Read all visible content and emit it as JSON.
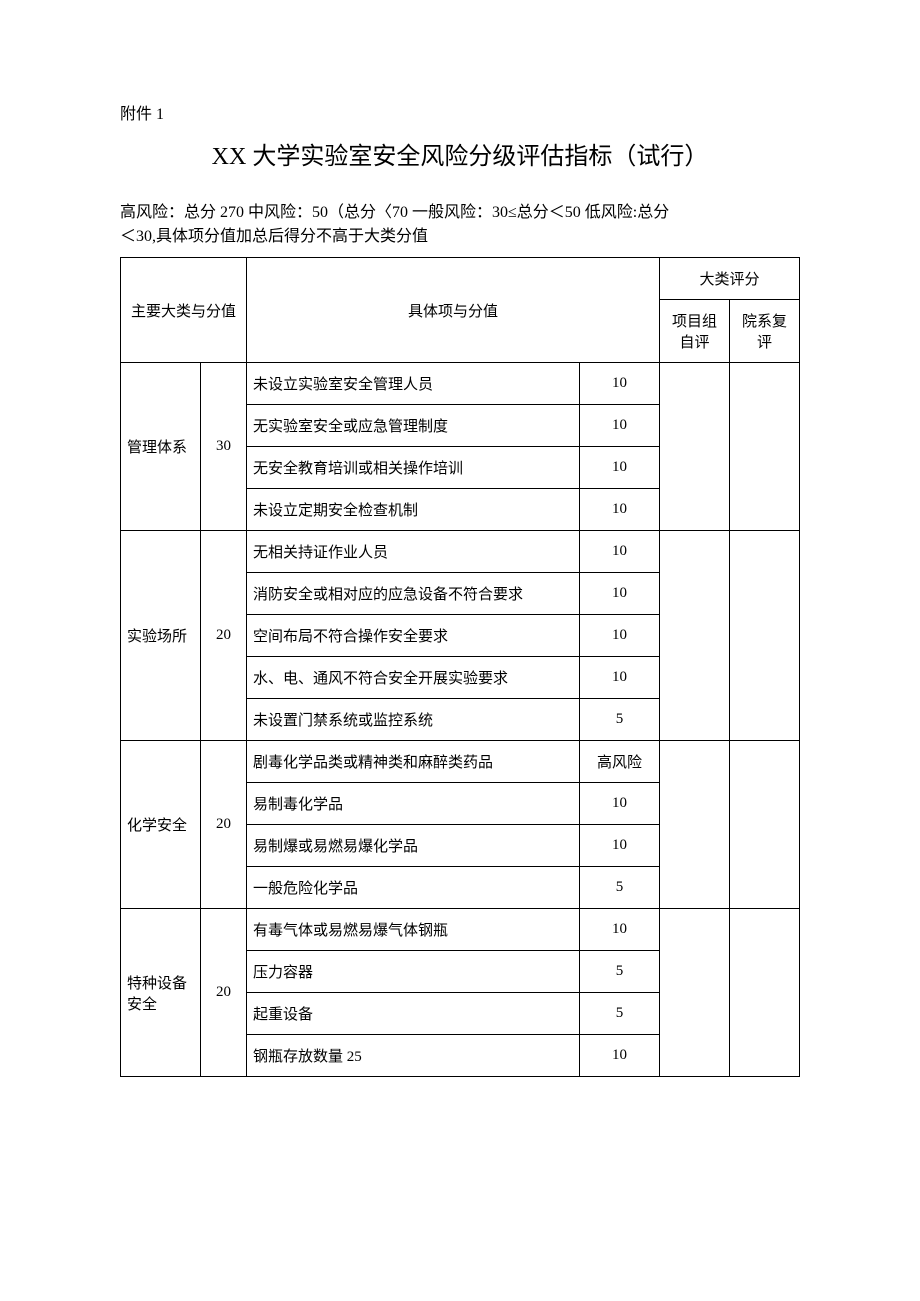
{
  "attachment_label": "附件 1",
  "title": "XX 大学实验室安全风险分级评估指标（试行）",
  "criteria_line1": "高风险：总分 270 中风险：50（总分〈70 一般风险：30≤总分＜50 低风险:总分",
  "criteria_line2": "＜30,具体项分值加总后得分不高于大类分值",
  "header": {
    "main_category": "主要大类与分值",
    "item_and_score": "具体项与分值",
    "scoring_group": "大类评分",
    "self_score": "项目组自评",
    "review_score": "院系复评"
  },
  "categories": [
    {
      "name": "管理体系",
      "score": "30",
      "items": [
        {
          "desc": "未设立实验室安全管理人员",
          "score": "10"
        },
        {
          "desc": "无实验室安全或应急管理制度",
          "score": "10"
        },
        {
          "desc": "无安全教育培训或相关操作培训",
          "score": "10"
        },
        {
          "desc": "未设立定期安全检查机制",
          "score": "10"
        }
      ]
    },
    {
      "name": "实验场所",
      "score": "20",
      "items": [
        {
          "desc": "无相关持证作业人员",
          "score": "10"
        },
        {
          "desc": "消防安全或相对应的应急设备不符合要求",
          "score": "10"
        },
        {
          "desc": "空间布局不符合操作安全要求",
          "score": "10"
        },
        {
          "desc": "水、电、通风不符合安全开展实验要求",
          "score": "10"
        },
        {
          "desc": "未设置门禁系统或监控系统",
          "score": "5"
        }
      ]
    },
    {
      "name": "化学安全",
      "score": "20",
      "items": [
        {
          "desc": "剧毒化学品类或精神类和麻醉类药品",
          "score": "高风险"
        },
        {
          "desc": "易制毒化学品",
          "score": "10"
        },
        {
          "desc": "易制爆或易燃易爆化学品",
          "score": "10"
        },
        {
          "desc": "一般危险化学品",
          "score": "5"
        }
      ]
    },
    {
      "name": "特种设备安全",
      "score": "20",
      "items": [
        {
          "desc": "有毒气体或易燃易爆气体钢瓶",
          "score": "10"
        },
        {
          "desc": "压力容器",
          "score": "5"
        },
        {
          "desc": "起重设备",
          "score": "5"
        },
        {
          "desc": "钢瓶存放数量 25",
          "score": "10"
        }
      ]
    }
  ]
}
